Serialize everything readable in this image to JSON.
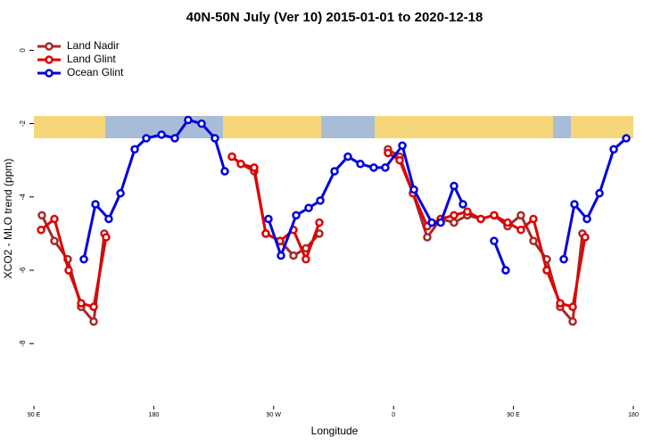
{
  "chart_data": {
    "type": "line",
    "title": "40N-50N July (Ver 10)   2015-01-01 to 2020-12-18",
    "x_label": "Longitude",
    "y_label": "XCO2 - MLO trend (ppm)",
    "xlim": [
      84,
      543
    ],
    "ylim": [
      -9.7,
      0.4
    ],
    "xticks": [
      {
        "value": 90,
        "label": "90 E"
      },
      {
        "value": 180,
        "label": "180"
      },
      {
        "value": 270,
        "label": "90 W"
      },
      {
        "value": 360,
        "label": "0"
      },
      {
        "value": 450,
        "label": "90 E"
      },
      {
        "value": 540,
        "label": "180"
      }
    ],
    "yticks": [
      0,
      -2,
      -4,
      -6,
      -8
    ],
    "legend": "top-left",
    "series": [
      {
        "name": "Land Nadir",
        "color": "#a52a2a",
        "x": [
          96,
          105.4,
          115.4,
          125.5,
          134.9,
          142.9,
          null,
          238.7,
          245.4,
          255.4,
          264.1,
          274.8,
          284.9,
          294.2,
          304.3,
          null,
          355.8,
          364.6,
          374.6,
          385.3,
          395.4,
          405.4,
          415.4,
          425.5,
          435.5,
          445.6,
          455.6,
          465,
          475,
          485.1,
          494.5,
          501.8
        ],
        "values": [
          -4.5,
          -5.2,
          -5.7,
          -7.0,
          -7.4,
          -5.0,
          null,
          -2.9,
          -3.1,
          -3.3,
          -5.0,
          -5.2,
          -5.6,
          -5.4,
          -5.0,
          null,
          -2.7,
          -2.9,
          -3.9,
          -5.1,
          -4.6,
          -4.7,
          -4.5,
          -4.6,
          -4.5,
          -4.8,
          -4.5,
          -5.2,
          -5.7,
          -7.0,
          -7.4,
          -5.0
        ]
      },
      {
        "name": "Land Glint",
        "color": "#e00000",
        "x": [
          95.4,
          105.4,
          116.1,
          125.5,
          134.9,
          144.2,
          null,
          238.7,
          245.4,
          255.4,
          264.1,
          274.8,
          284.9,
          294.2,
          304.3,
          null,
          355.8,
          364.6,
          374.6,
          385.3,
          395.4,
          405.4,
          415.4,
          425.5,
          435.5,
          445.6,
          455.6,
          465,
          475,
          485.1,
          494.5,
          503.8
        ],
        "values": [
          -4.9,
          -4.6,
          -6.0,
          -6.9,
          -7.0,
          -5.1,
          null,
          -2.9,
          -3.1,
          -3.2,
          -5.0,
          -5.2,
          -4.9,
          -5.7,
          -4.7,
          null,
          -2.8,
          -3.0,
          -3.9,
          -4.8,
          -4.6,
          -4.5,
          -4.4,
          -4.6,
          -4.5,
          -4.7,
          -4.9,
          -4.6,
          -6.0,
          -6.9,
          -7.0,
          -5.1
        ]
      },
      {
        "name": "Ocean Glint",
        "color": "#0000e0",
        "x": [
          127.5,
          136.2,
          146.2,
          155,
          165.7,
          174.4,
          185.8,
          195.8,
          205.8,
          215.9,
          225.9,
          233.3,
          null,
          266.1,
          275.5,
          286.9,
          296.3,
          305,
          315.7,
          325.7,
          335.1,
          345.1,
          353.8,
          366.6,
          375.3,
          388.7,
          395.4,
          405.4,
          412.1,
          null,
          435.5,
          444.2,
          null,
          487.8,
          495.8,
          505.2,
          514.6,
          525.3,
          534.7
        ],
        "values": [
          -5.7,
          -4.2,
          -4.6,
          -3.9,
          -2.7,
          -2.4,
          -2.3,
          -2.4,
          -1.9,
          -2.0,
          -2.4,
          -3.3,
          null,
          -4.6,
          -5.6,
          -4.5,
          -4.3,
          -4.1,
          -3.3,
          -2.9,
          -3.1,
          -3.2,
          -3.2,
          -2.6,
          -3.8,
          -4.7,
          -4.7,
          -3.7,
          -4.2,
          null,
          -5.2,
          -6.0,
          null,
          -5.7,
          -4.2,
          -4.6,
          -3.9,
          -2.7,
          -2.4
        ]
      }
    ]
  }
}
